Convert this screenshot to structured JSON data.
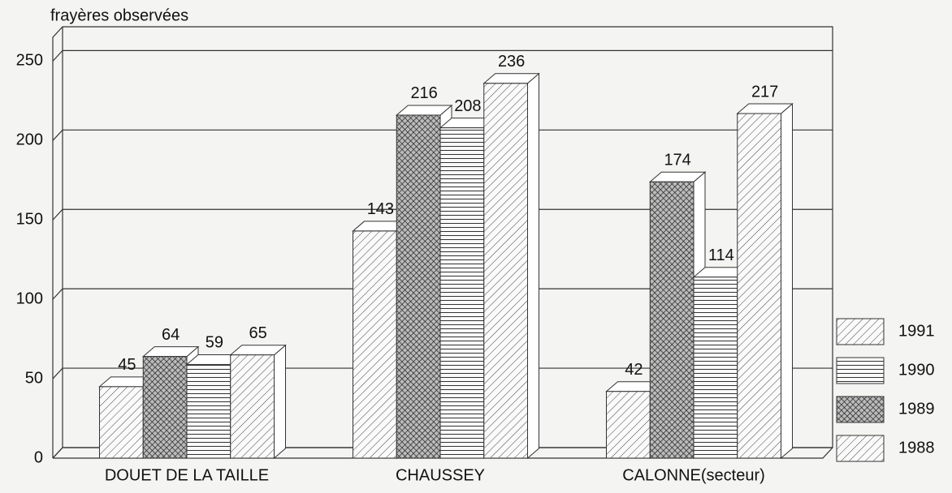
{
  "chart_data": {
    "type": "bar3d",
    "y_label": "frayères observées",
    "categories": [
      "DOUET DE LA TAILLE",
      "CHAUSSEY",
      "CALONNE(secteur)"
    ],
    "series": [
      {
        "name": "1988",
        "pattern": "diagonal",
        "values": [
          45,
          143,
          42
        ]
      },
      {
        "name": "1989",
        "pattern": "crosshatch",
        "values": [
          64,
          216,
          174
        ]
      },
      {
        "name": "1990",
        "pattern": "horizontal",
        "values": [
          59,
          208,
          114
        ]
      },
      {
        "name": "1991",
        "pattern": "diagonal",
        "values": [
          65,
          236,
          217
        ]
      }
    ],
    "ylim": [
      0,
      265
    ],
    "yticks": [
      0,
      50,
      100,
      150,
      200,
      250
    ],
    "grid": true,
    "legend": "right"
  }
}
